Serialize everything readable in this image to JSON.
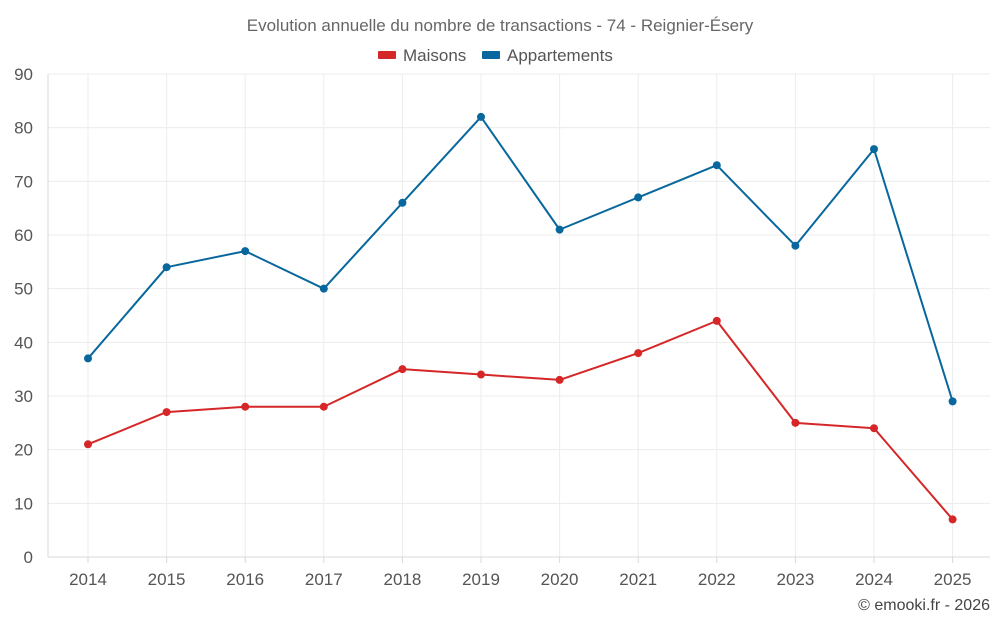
{
  "chart_data": {
    "type": "line",
    "title": "Evolution annuelle du nombre de transactions - 74 - Reignier-Ésery",
    "categories": [
      "2014",
      "2015",
      "2016",
      "2017",
      "2018",
      "2019",
      "2020",
      "2021",
      "2022",
      "2023",
      "2024",
      "2025"
    ],
    "series": [
      {
        "name": "Maisons",
        "color": "#d62728",
        "values": [
          21,
          27,
          28,
          28,
          35,
          34,
          33,
          38,
          44,
          25,
          24,
          7
        ]
      },
      {
        "name": "Appartements",
        "color": "#08679c",
        "values": [
          37,
          54,
          57,
          50,
          66,
          82,
          61,
          67,
          73,
          58,
          76,
          29
        ]
      }
    ],
    "yticks": [
      "0",
      "10",
      "20",
      "30",
      "40",
      "50",
      "60",
      "70",
      "80",
      "90"
    ],
    "ylim": [
      0,
      90
    ],
    "xlabel": "",
    "ylabel": "",
    "grid": true,
    "legend_position": "top-center"
  },
  "credit": "© emooki.fr - 2026"
}
